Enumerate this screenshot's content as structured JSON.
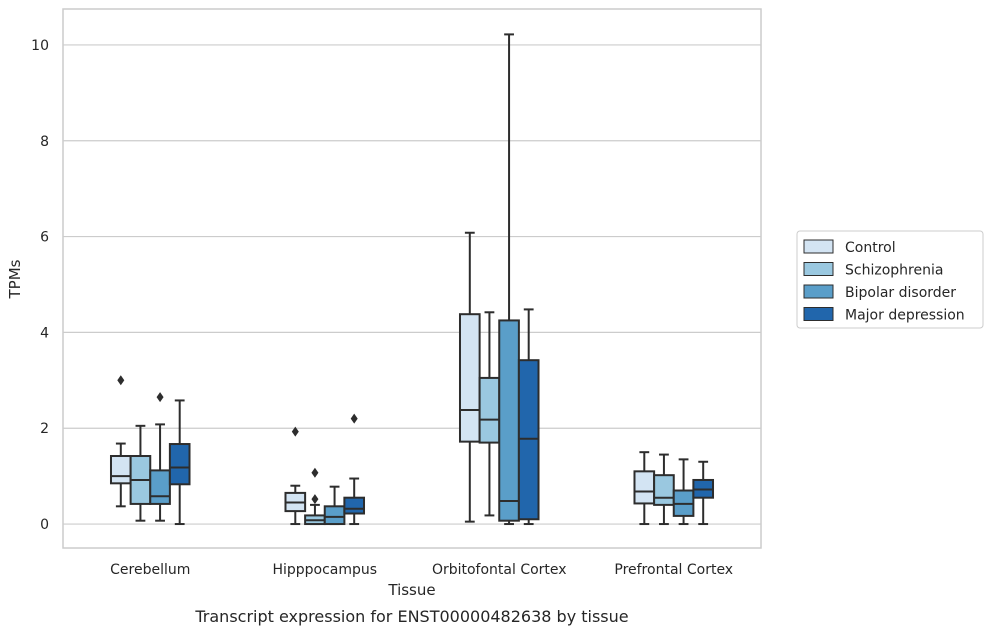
{
  "chart_data": {
    "type": "box",
    "title": "Transcript expression for ENST00000482638 by tissue",
    "xlabel": "Tissue",
    "ylabel": "TPMs",
    "ylim": [
      -0.5,
      10.75
    ],
    "yticks": [
      0,
      2,
      4,
      6,
      8,
      10
    ],
    "grid": true,
    "legend_position": "right",
    "categories": [
      "Cerebellum",
      "Hipppocampus",
      "Orbitofontal Cortex",
      "Prefrontal Cortex"
    ],
    "series": [
      {
        "name": "Control",
        "color": "#d3e4f3",
        "boxes": [
          {
            "whislo": 0.37,
            "q1": 0.85,
            "med": 1.0,
            "q3": 1.42,
            "whishi": 1.68,
            "fliers": [
              3.0
            ]
          },
          {
            "whislo": 0.0,
            "q1": 0.27,
            "med": 0.45,
            "q3": 0.65,
            "whishi": 0.8,
            "fliers": [
              1.93
            ]
          },
          {
            "whislo": 0.05,
            "q1": 1.72,
            "med": 2.38,
            "q3": 4.38,
            "whishi": 6.08,
            "fliers": []
          },
          {
            "whislo": 0.0,
            "q1": 0.43,
            "med": 0.68,
            "q3": 1.1,
            "whishi": 1.5,
            "fliers": []
          }
        ]
      },
      {
        "name": "Schizophrenia",
        "color": "#9ac8e0",
        "boxes": [
          {
            "whislo": 0.07,
            "q1": 0.42,
            "med": 0.92,
            "q3": 1.42,
            "whishi": 2.05,
            "fliers": []
          },
          {
            "whislo": 0.0,
            "q1": 0.0,
            "med": 0.08,
            "q3": 0.18,
            "whishi": 0.4,
            "fliers": [
              0.52,
              1.07
            ]
          },
          {
            "whislo": 0.18,
            "q1": 1.7,
            "med": 2.18,
            "q3": 3.05,
            "whishi": 4.42,
            "fliers": []
          },
          {
            "whislo": 0.0,
            "q1": 0.4,
            "med": 0.55,
            "q3": 1.02,
            "whishi": 1.45,
            "fliers": []
          }
        ]
      },
      {
        "name": "Bipolar disorder",
        "color": "#5a9ec9",
        "boxes": [
          {
            "whislo": 0.07,
            "q1": 0.42,
            "med": 0.58,
            "q3": 1.12,
            "whishi": 2.08,
            "fliers": [
              2.65
            ]
          },
          {
            "whislo": 0.0,
            "q1": 0.0,
            "med": 0.15,
            "q3": 0.37,
            "whishi": 0.78,
            "fliers": []
          },
          {
            "whislo": 0.0,
            "q1": 0.07,
            "med": 0.48,
            "q3": 4.25,
            "whishi": 10.22,
            "fliers": []
          },
          {
            "whislo": 0.0,
            "q1": 0.17,
            "med": 0.42,
            "q3": 0.7,
            "whishi": 1.35,
            "fliers": []
          }
        ]
      },
      {
        "name": "Major depression",
        "color": "#2166ac",
        "boxes": [
          {
            "whislo": 0.0,
            "q1": 0.83,
            "med": 1.18,
            "q3": 1.67,
            "whishi": 2.58,
            "fliers": []
          },
          {
            "whislo": 0.0,
            "q1": 0.22,
            "med": 0.32,
            "q3": 0.55,
            "whishi": 0.95,
            "fliers": [
              2.2
            ]
          },
          {
            "whislo": 0.0,
            "q1": 0.1,
            "med": 1.78,
            "q3": 3.42,
            "whishi": 4.48,
            "fliers": []
          },
          {
            "whislo": 0.0,
            "q1": 0.55,
            "med": 0.72,
            "q3": 0.92,
            "whishi": 1.3,
            "fliers": []
          }
        ]
      }
    ]
  }
}
